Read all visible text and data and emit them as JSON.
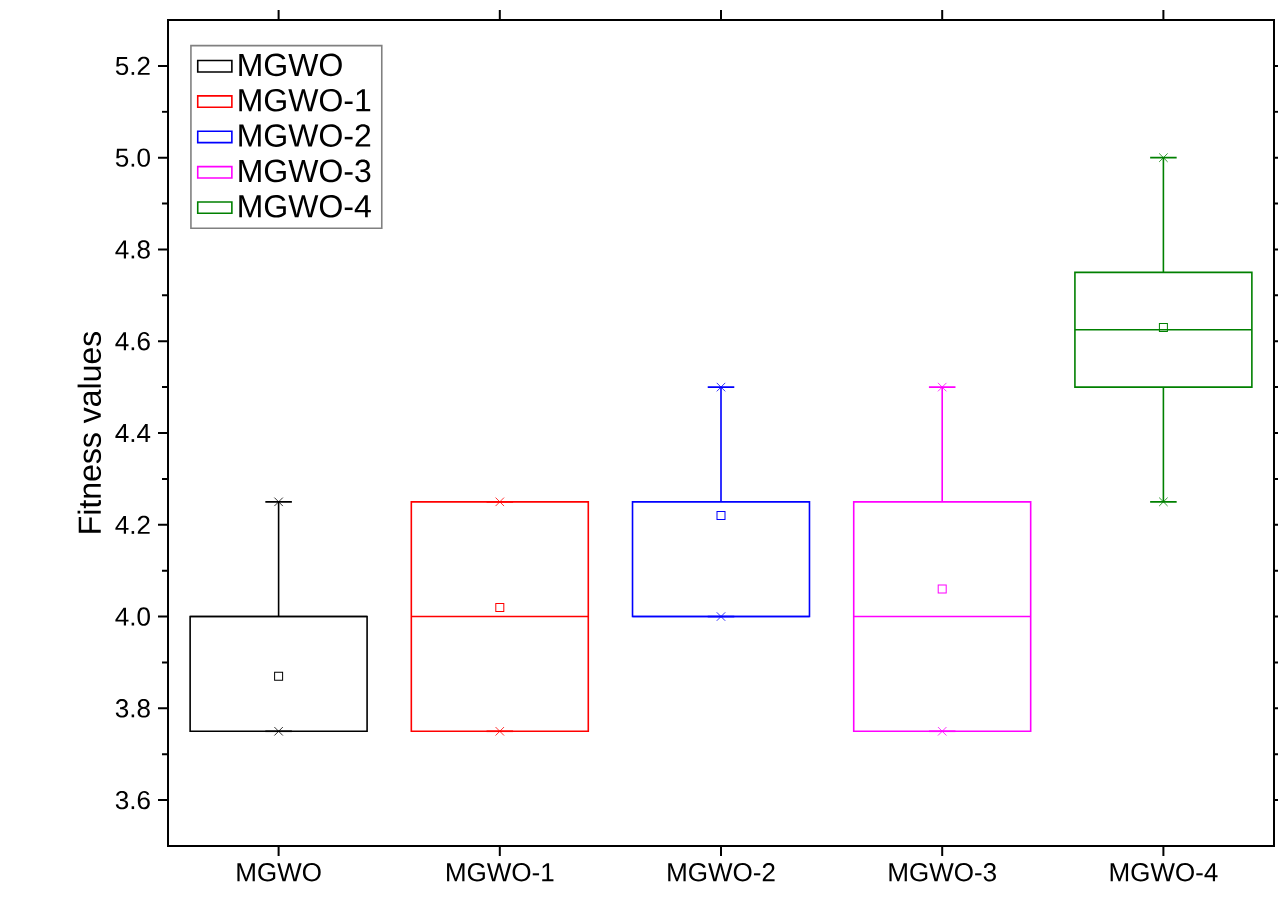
{
  "chart_data": {
    "type": "box",
    "ylabel": "Fitness values",
    "categories": [
      "MGWO",
      "MGWO-1",
      "MGWO-2",
      "MGWO-3",
      "MGWO-4"
    ],
    "series": [
      {
        "name": "MGWO",
        "color": "#000000",
        "boxes": [
          {
            "low": 3.75,
            "q1": 3.75,
            "median": 4.0,
            "q3": 4.0,
            "high": 4.25,
            "mean": 3.87
          },
          null,
          null,
          null,
          null
        ]
      },
      {
        "name": "MGWO-1",
        "color": "#ff0000",
        "boxes": [
          null,
          {
            "low": 3.75,
            "q1": 3.75,
            "median": 4.0,
            "q3": 4.25,
            "high": 4.25,
            "mean": 4.02
          },
          null,
          null,
          null
        ]
      },
      {
        "name": "MGWO-2",
        "color": "#0000ff",
        "boxes": [
          null,
          null,
          {
            "low": 4.0,
            "q1": 4.0,
            "median": 4.0,
            "q3": 4.25,
            "high": 4.5,
            "mean": 4.22
          },
          null,
          null
        ]
      },
      {
        "name": "MGWO-3",
        "color": "#ff00ff",
        "boxes": [
          null,
          null,
          null,
          {
            "low": 3.75,
            "q1": 3.75,
            "median": 4.0,
            "q3": 4.25,
            "high": 4.5,
            "mean": 4.06
          },
          null
        ]
      },
      {
        "name": "MGWO-4",
        "color": "#008000",
        "boxes": [
          null,
          null,
          null,
          null,
          {
            "low": 4.25,
            "q1": 4.5,
            "median": 4.625,
            "q3": 4.75,
            "high": 5.0,
            "mean": 4.63
          }
        ]
      },
      {
        "type": "scatter",
        "marker": "cross",
        "colors": [
          "#000000",
          "#ff0000",
          "#0000ff",
          "#ff00ff",
          "#008000"
        ],
        "x": [
          "MGWO",
          "MGWO-1",
          "MGWO-2",
          "MGWO-3",
          "MGWO-4"
        ],
        "values": [
          3.75,
          3.75,
          4.0,
          3.75,
          4.25
        ]
      },
      {
        "type": "scatter",
        "marker": "cross",
        "colors": [
          "#000000",
          "#ff0000",
          "#0000ff",
          "#ff00ff",
          "#008000"
        ],
        "x": [
          "MGWO",
          "MGWO-1",
          "MGWO-2",
          "MGWO-3",
          "MGWO-4"
        ],
        "values": [
          4.25,
          4.25,
          4.5,
          4.5,
          5.0
        ]
      }
    ],
    "ylim": [
      3.5,
      5.3
    ],
    "yticks": [
      3.6,
      3.8,
      {
        "value": 4.0,
        "label": "4.0"
      },
      4.2,
      4.4,
      4.6,
      4.8,
      {
        "value": 5.0,
        "label": "5.0"
      },
      5.2
    ],
    "legend": "top left"
  }
}
